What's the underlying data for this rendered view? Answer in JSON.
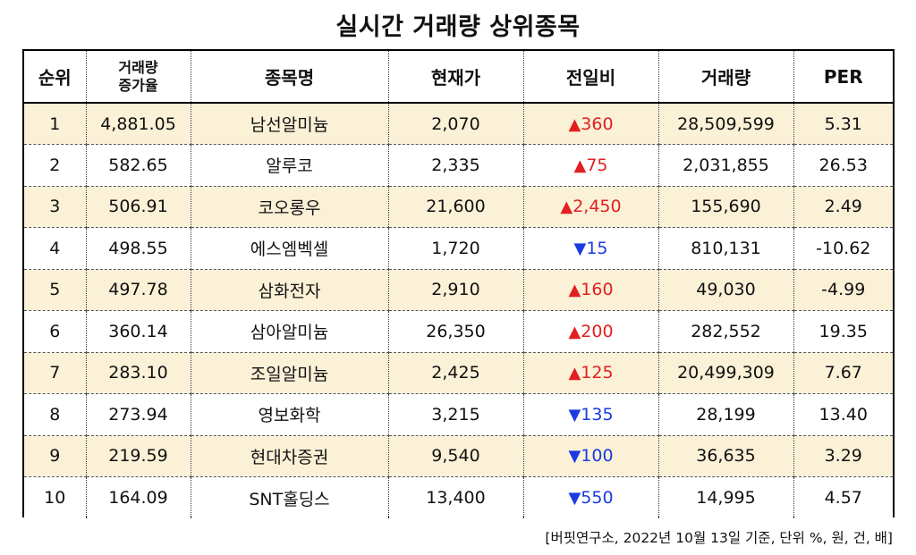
{
  "title": "실시간 거래량 상위종목",
  "headers": {
    "rank": "순위",
    "volume_increase_line1": "거래량",
    "volume_increase_line2": "증가율",
    "name": "종목명",
    "price": "현재가",
    "change": "전일비",
    "volume": "거래량",
    "per": "PER"
  },
  "rows": [
    {
      "rank": "1",
      "increase": "4,881.05",
      "name": "남선알미늄",
      "price": "2,070",
      "direction": "up",
      "arrow": "▲",
      "change": "360",
      "volume": "28,509,599",
      "per": "5.31"
    },
    {
      "rank": "2",
      "increase": "582.65",
      "name": "알루코",
      "price": "2,335",
      "direction": "up",
      "arrow": "▲",
      "change": "75",
      "volume": "2,031,855",
      "per": "26.53"
    },
    {
      "rank": "3",
      "increase": "506.91",
      "name": "코오롱우",
      "price": "21,600",
      "direction": "up",
      "arrow": "▲",
      "change": "2,450",
      "volume": "155,690",
      "per": "2.49"
    },
    {
      "rank": "4",
      "increase": "498.55",
      "name": "에스엠벡셀",
      "price": "1,720",
      "direction": "down",
      "arrow": "▼",
      "change": "15",
      "volume": "810,131",
      "per": "-10.62"
    },
    {
      "rank": "5",
      "increase": "497.78",
      "name": "삼화전자",
      "price": "2,910",
      "direction": "up",
      "arrow": "▲",
      "change": "160",
      "volume": "49,030",
      "per": "-4.99"
    },
    {
      "rank": "6",
      "increase": "360.14",
      "name": "삼아알미늄",
      "price": "26,350",
      "direction": "up",
      "arrow": "▲",
      "change": "200",
      "volume": "282,552",
      "per": "19.35"
    },
    {
      "rank": "7",
      "increase": "283.10",
      "name": "조일알미늄",
      "price": "2,425",
      "direction": "up",
      "arrow": "▲",
      "change": "125",
      "volume": "20,499,309",
      "per": "7.67"
    },
    {
      "rank": "8",
      "increase": "273.94",
      "name": "영보화학",
      "price": "3,215",
      "direction": "down",
      "arrow": "▼",
      "change": "135",
      "volume": "28,199",
      "per": "13.40"
    },
    {
      "rank": "9",
      "increase": "219.59",
      "name": "현대차증권",
      "price": "9,540",
      "direction": "down",
      "arrow": "▼",
      "change": "100",
      "volume": "36,635",
      "per": "3.29"
    },
    {
      "rank": "10",
      "increase": "164.09",
      "name": "SNT홀딩스",
      "price": "13,400",
      "direction": "down",
      "arrow": "▼",
      "change": "550",
      "volume": "14,995",
      "per": "4.57"
    }
  ],
  "footnote": "[버핏연구소, 2022년 10월 13일 기준, 단위 %, 원, 건, 배]",
  "colors": {
    "up": "#e02020",
    "down": "#1a3be0",
    "stripe": "#fbf1d7"
  }
}
